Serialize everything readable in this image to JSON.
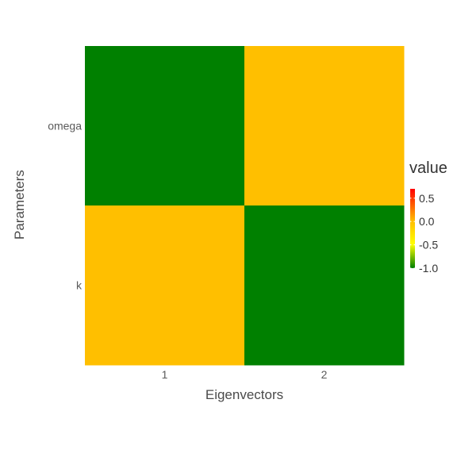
{
  "chart_data": {
    "type": "heatmap",
    "title": "",
    "xlabel": "Eigenvectors",
    "ylabel": "Parameters",
    "x_categories": [
      "1",
      "2"
    ],
    "y_categories": [
      "omega",
      "k"
    ],
    "values": [
      [
        -1.0,
        0.0
      ],
      [
        0.0,
        -1.0
      ]
    ],
    "grid": false,
    "legend": {
      "title": "value",
      "position": "right",
      "ticks": [
        "0.5",
        "0.0",
        "-0.5",
        "-1.0"
      ],
      "tick_values": [
        0.5,
        0.0,
        -0.5,
        -1.0
      ],
      "range": [
        -1.0,
        0.7
      ]
    },
    "colors": {
      "low": "#008000",
      "mid_low": "#ffff00",
      "mid": "#ffbf00",
      "high": "#ff0000",
      "cell_negative": "#008000",
      "cell_zero": "#ffbf00"
    }
  }
}
